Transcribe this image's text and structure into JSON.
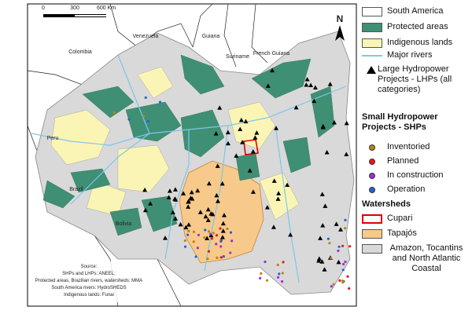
{
  "map": {
    "scale_bar": [
      "0",
      "300",
      "600 Km"
    ],
    "north": "N",
    "countries": [
      "Venezuela",
      "Guiana",
      "Colombia",
      "Suriname",
      "French Guiana",
      "Peru",
      "Brazil",
      "Bolivia"
    ],
    "source": [
      "Source:",
      "SHPs and LHPs: ANEEL;",
      "Protected areas, Brazilian rivers, watersheds: MMA",
      "South America rivers: HydroSHEDS",
      "Indigenous lands: Funai"
    ]
  },
  "legend": {
    "layers": [
      "South America",
      "Protected areas",
      "Indigenous lands",
      "Major rivers"
    ],
    "lhp": "Large Hydropower Projects - LHPs (all categories)",
    "shp_title": "Small Hydropower Projects - SHPs",
    "shp_items": [
      "Inventoried",
      "Planned",
      "In construction",
      "Operation"
    ],
    "watersheds_title": "Watersheds",
    "watershed_items": [
      "Cupari",
      "Tapajós",
      "Amazon, Tocantins and North Atlantic Coastal"
    ]
  }
}
